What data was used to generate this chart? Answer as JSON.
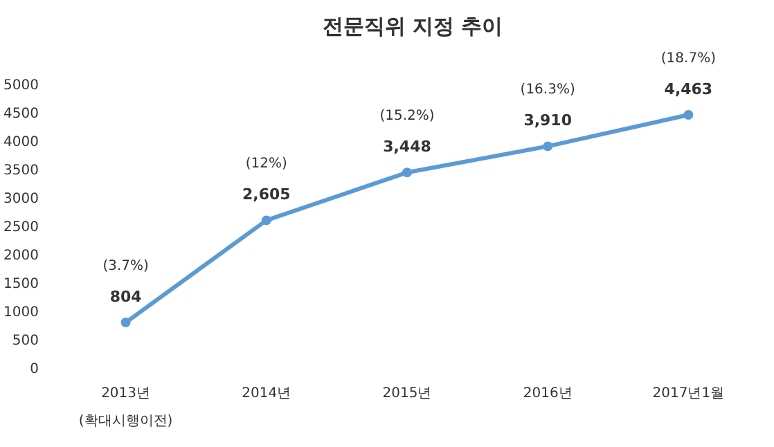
{
  "chart_data": {
    "type": "line",
    "title": "전문직위 지정 추이",
    "categories": [
      "2013년 (확대시행이전)",
      "2014년",
      "2015년",
      "2016년",
      "2017년1월"
    ],
    "series": [
      {
        "color": "#5b9bd5",
        "values": [
          804,
          2605,
          3448,
          3910,
          4463
        ],
        "value_labels": [
          "804",
          "2,605",
          "3,448",
          "3,910",
          "4,463"
        ]
      }
    ],
    "annotations": [
      "(3.7%)",
      "(12%)",
      "(15.2%)",
      "(16.3%)",
      "(18.7%)"
    ],
    "ylim": [
      0,
      5000
    ],
    "yticks": [
      0,
      500,
      1000,
      1500,
      2000,
      2500,
      3000,
      3500,
      4000,
      4500,
      5000
    ],
    "grid": false,
    "marker": "circle"
  }
}
